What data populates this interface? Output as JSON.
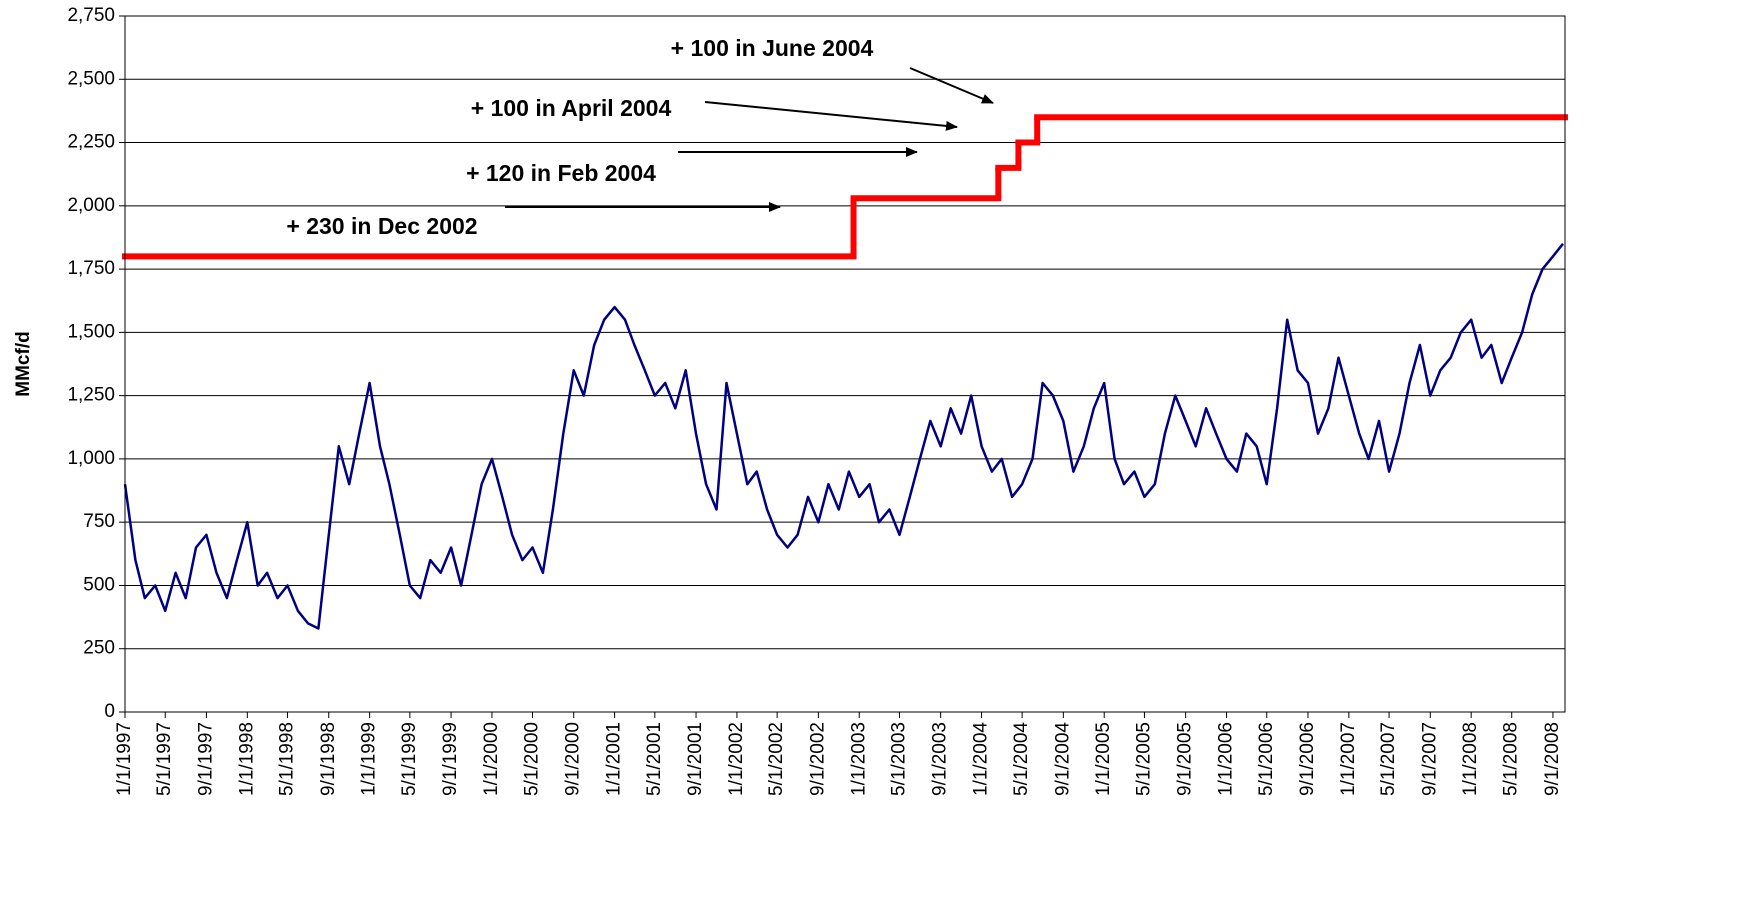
{
  "chart_data": {
    "type": "line",
    "y_label": "MMcf/d",
    "ylim": [
      0,
      2750
    ],
    "yticks": [
      0,
      250,
      500,
      750,
      {
        "value": 1000,
        "label": "1,000"
      },
      {
        "value": 1250,
        "label": "1,250"
      },
      {
        "value": 1500,
        "label": "1,500"
      },
      {
        "value": 1750,
        "label": "1,750"
      },
      {
        "value": 2000,
        "label": "2,000"
      },
      {
        "value": 2250,
        "label": "2,250"
      },
      {
        "value": 2500,
        "label": "2,500"
      },
      {
        "value": 2750,
        "label": "2,750"
      }
    ],
    "xlim": [
      "1997-01-01",
      "2008-10-07"
    ],
    "xticks": [
      {
        "value": "1997-01-01",
        "label": "1/1/1997"
      },
      {
        "value": "1997-05-01",
        "label": "5/1/1997"
      },
      {
        "value": "1997-09-01",
        "label": "9/1/1997"
      },
      {
        "value": "1998-01-01",
        "label": "1/1/1998"
      },
      {
        "value": "1998-05-01",
        "label": "5/1/1998"
      },
      {
        "value": "1998-09-01",
        "label": "9/1/1998"
      },
      {
        "value": "1999-01-01",
        "label": "1/1/1999"
      },
      {
        "value": "1999-05-01",
        "label": "5/1/1999"
      },
      {
        "value": "1999-09-01",
        "label": "9/1/1999"
      },
      {
        "value": "2000-01-01",
        "label": "1/1/2000"
      },
      {
        "value": "2000-05-01",
        "label": "5/1/2000"
      },
      {
        "value": "2000-09-01",
        "label": "9/1/2000"
      },
      {
        "value": "2001-01-01",
        "label": "1/1/2001"
      },
      {
        "value": "2001-05-01",
        "label": "5/1/2001"
      },
      {
        "value": "2001-09-01",
        "label": "9/1/2001"
      },
      {
        "value": "2002-01-01",
        "label": "1/1/2002"
      },
      {
        "value": "2002-05-01",
        "label": "5/1/2002"
      },
      {
        "value": "2002-09-01",
        "label": "9/1/2002"
      },
      {
        "value": "2003-01-01",
        "label": "1/1/2003"
      },
      {
        "value": "2003-05-01",
        "label": "5/1/2003"
      },
      {
        "value": "2003-09-01",
        "label": "9/1/2003"
      },
      {
        "value": "2004-01-01",
        "label": "1/1/2004"
      },
      {
        "value": "2004-05-01",
        "label": "5/1/2004"
      },
      {
        "value": "2004-09-01",
        "label": "9/1/2004"
      },
      {
        "value": "2005-01-01",
        "label": "1/1/2005"
      },
      {
        "value": "2005-05-01",
        "label": "5/1/2005"
      },
      {
        "value": "2005-09-01",
        "label": "9/1/2005"
      },
      {
        "value": "2006-01-01",
        "label": "1/1/2006"
      },
      {
        "value": "2006-05-01",
        "label": "5/1/2006"
      },
      {
        "value": "2006-09-01",
        "label": "9/1/2006"
      },
      {
        "value": "2007-01-01",
        "label": "1/1/2007"
      },
      {
        "value": "2007-05-01",
        "label": "5/1/2007"
      },
      {
        "value": "2007-09-01",
        "label": "9/1/2007"
      },
      {
        "value": "2008-01-01",
        "label": "1/1/2008"
      },
      {
        "value": "2008-05-01",
        "label": "5/1/2008"
      },
      {
        "value": "2008-09-01",
        "label": "9/1/2008"
      }
    ],
    "grid": true,
    "series": [
      {
        "color": "#000080",
        "x": [
          "1997-01-01",
          "1997-02-01",
          "1997-03-01",
          "1997-04-01",
          "1997-05-01",
          "1997-06-01",
          "1997-07-01",
          "1997-08-01",
          "1997-09-01",
          "1997-10-01",
          "1997-11-01",
          "1997-12-01",
          "1998-01-01",
          "1998-02-01",
          "1998-03-01",
          "1998-04-01",
          "1998-05-01",
          "1998-06-01",
          "1998-07-01",
          "1998-08-01",
          "1998-09-01",
          "1998-10-01",
          "1998-11-01",
          "1998-12-01",
          "1999-01-01",
          "1999-02-01",
          "1999-03-01",
          "1999-04-01",
          "1999-05-01",
          "1999-06-01",
          "1999-07-01",
          "1999-08-01",
          "1999-09-01",
          "1999-10-01",
          "1999-11-01",
          "1999-12-01",
          "2000-01-01",
          "2000-02-01",
          "2000-03-01",
          "2000-04-01",
          "2000-05-01",
          "2000-06-01",
          "2000-07-01",
          "2000-08-01",
          "2000-09-01",
          "2000-10-01",
          "2000-11-01",
          "2000-12-01",
          "2001-01-01",
          "2001-02-01",
          "2001-03-01",
          "2001-04-01",
          "2001-05-01",
          "2001-06-01",
          "2001-07-01",
          "2001-08-01",
          "2001-09-01",
          "2001-10-01",
          "2001-11-01",
          "2001-12-01",
          "2002-01-01",
          "2002-02-01",
          "2002-03-01",
          "2002-04-01",
          "2002-05-01",
          "2002-06-01",
          "2002-07-01",
          "2002-08-01",
          "2002-09-01",
          "2002-10-01",
          "2002-11-01",
          "2002-12-01",
          "2003-01-01",
          "2003-02-01",
          "2003-03-01",
          "2003-04-01",
          "2003-05-01",
          "2003-06-01",
          "2003-07-01",
          "2003-08-01",
          "2003-09-01",
          "2003-10-01",
          "2003-11-01",
          "2003-12-01",
          "2004-01-01",
          "2004-02-01",
          "2004-03-01",
          "2004-04-01",
          "2004-05-01",
          "2004-06-01",
          "2004-07-01",
          "2004-08-01",
          "2004-09-01",
          "2004-10-01",
          "2004-11-01",
          "2004-12-01",
          "2005-01-01",
          "2005-02-01",
          "2005-03-01",
          "2005-04-01",
          "2005-05-01",
          "2005-06-01",
          "2005-07-01",
          "2005-08-01",
          "2005-09-01",
          "2005-10-01",
          "2005-11-01",
          "2005-12-01",
          "2006-01-01",
          "2006-02-01",
          "2006-03-01",
          "2006-04-01",
          "2006-05-01",
          "2006-06-01",
          "2006-07-01",
          "2006-08-01",
          "2006-09-01",
          "2006-10-01",
          "2006-11-01",
          "2006-12-01",
          "2007-01-01",
          "2007-02-01",
          "2007-03-01",
          "2007-04-01",
          "2007-05-01",
          "2007-06-01",
          "2007-07-01",
          "2007-08-01",
          "2007-09-01",
          "2007-10-01",
          "2007-11-01",
          "2007-12-01",
          "2008-01-01",
          "2008-02-01",
          "2008-03-01",
          "2008-04-01",
          "2008-05-01",
          "2008-06-01",
          "2008-07-01",
          "2008-08-01",
          "2008-09-01",
          "2008-10-01"
        ],
        "values": [
          900,
          600,
          450,
          500,
          400,
          550,
          450,
          650,
          700,
          550,
          450,
          600,
          750,
          500,
          550,
          450,
          500,
          400,
          350,
          330,
          700,
          1050,
          900,
          1100,
          1300,
          1050,
          900,
          700,
          500,
          450,
          600,
          550,
          650,
          500,
          700,
          900,
          1000,
          850,
          700,
          600,
          650,
          550,
          800,
          1100,
          1350,
          1250,
          1450,
          1550,
          1600,
          1550,
          1450,
          1350,
          1250,
          1300,
          1200,
          1350,
          1100,
          900,
          800,
          1300,
          1100,
          900,
          950,
          800,
          700,
          650,
          700,
          850,
          750,
          900,
          800,
          950,
          850,
          900,
          750,
          800,
          700,
          850,
          1000,
          1150,
          1050,
          1200,
          1100,
          1250,
          1050,
          950,
          1000,
          850,
          900,
          1000,
          1300,
          1250,
          1150,
          950,
          1050,
          1200,
          1300,
          1000,
          900,
          950,
          850,
          900,
          1100,
          1250,
          1150,
          1050,
          1200,
          1100,
          1000,
          950,
          1100,
          1050,
          900,
          1200,
          1550,
          1350,
          1300,
          1100,
          1200,
          1400,
          1250,
          1100,
          1000,
          1150,
          950,
          1100,
          1300,
          1450,
          1250,
          1350,
          1400,
          1500,
          1550,
          1400,
          1450,
          1300,
          1400,
          1500,
          1650,
          1750,
          1800,
          1850
        ]
      },
      {
        "color": "#ff0000",
        "step": true,
        "x": [
          "1997-01-01",
          "2002-12-15",
          "2004-02-20",
          "2004-04-20",
          "2004-06-15"
        ],
        "values": [
          1800,
          2030,
          2150,
          2250,
          2350
        ]
      }
    ],
    "annotations": [
      "+ 100 in June 2004",
      "+ 100 in April 2004",
      "+ 120 in Feb 2004",
      "+ 230 in Dec 2002"
    ]
  }
}
